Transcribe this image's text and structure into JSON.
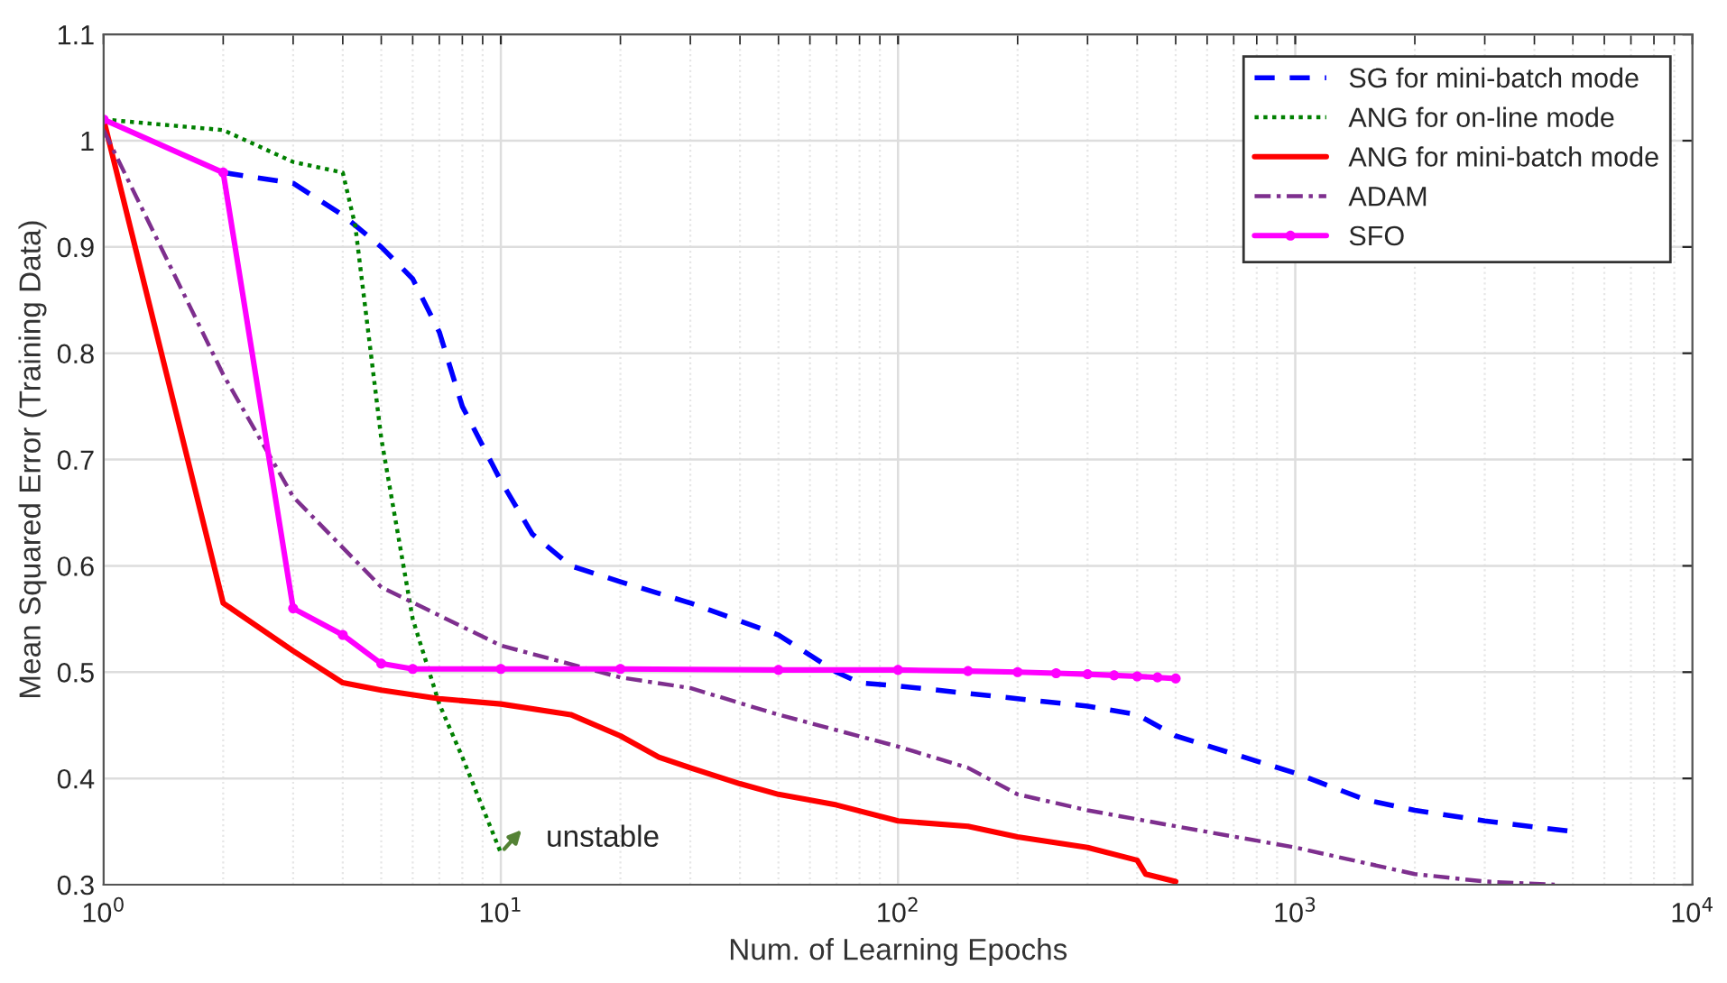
{
  "chart_data": {
    "type": "line",
    "xlabel": "Num. of Learning Epochs",
    "ylabel": "Mean Squared Error (Training Data)",
    "log": "x",
    "grid": true,
    "legend": "top right",
    "xlim": [
      1,
      10000
    ],
    "ylim": [
      0.3,
      1.1
    ],
    "xticks": [
      {
        "value": 1,
        "label": "10$^{0}$"
      },
      {
        "value": 10,
        "label": "10$^{1}$"
      },
      {
        "value": 100,
        "label": "10$^{2}$"
      },
      {
        "value": 1000,
        "label": "10$^{3}$"
      },
      {
        "value": 10000,
        "label": "10$^{4}$"
      }
    ],
    "yticks": [
      0.3,
      0.4,
      0.5,
      0.6,
      0.7,
      0.8,
      0.9,
      1,
      1.1
    ],
    "series": [
      {
        "name": "SG for mini-batch mode",
        "color": "#0000ff",
        "line_style": "dashed",
        "marker": "none",
        "x": [
          2,
          3,
          4,
          5,
          6,
          7,
          8,
          10,
          12,
          15,
          20,
          30,
          50,
          70,
          80,
          100,
          200,
          300,
          400,
          500,
          1000,
          1500,
          2000,
          3000,
          5000
        ],
        "values": [
          0.97,
          0.96,
          0.93,
          0.9,
          0.87,
          0.82,
          0.75,
          0.68,
          0.63,
          0.6,
          0.585,
          0.565,
          0.535,
          0.5,
          0.49,
          0.487,
          0.475,
          0.468,
          0.46,
          0.44,
          0.405,
          0.38,
          0.37,
          0.36,
          0.35
        ]
      },
      {
        "name": "ANG for on-line mode",
        "color": "#008000",
        "line_style": "dotted",
        "marker": "none",
        "x": [
          1,
          2,
          3,
          4,
          4.3,
          5,
          6,
          7,
          8,
          10
        ],
        "values": [
          1.02,
          1.01,
          0.98,
          0.97,
          0.92,
          0.72,
          0.55,
          0.47,
          0.42,
          0.33
        ]
      },
      {
        "name": "ANG for mini-batch mode",
        "color": "#ff0000",
        "line_style": "solid",
        "marker": "none",
        "x": [
          1,
          2,
          3,
          4,
          5,
          7,
          10,
          15,
          20,
          25,
          30,
          40,
          50,
          70,
          100,
          150,
          200,
          300,
          400,
          420,
          500
        ],
        "values": [
          1.02,
          0.565,
          0.52,
          0.49,
          0.483,
          0.475,
          0.47,
          0.46,
          0.44,
          0.42,
          0.41,
          0.395,
          0.385,
          0.375,
          0.36,
          0.355,
          0.345,
          0.335,
          0.323,
          0.31,
          0.303
        ]
      },
      {
        "name": "ADAM",
        "color": "#7e2f8e",
        "line_style": "dashdot",
        "marker": "none",
        "x": [
          1,
          2,
          3,
          5,
          10,
          20,
          30,
          50,
          100,
          150,
          200,
          300,
          500,
          1000,
          2000,
          3000,
          4500
        ],
        "values": [
          1.01,
          0.78,
          0.665,
          0.58,
          0.525,
          0.495,
          0.485,
          0.46,
          0.43,
          0.41,
          0.385,
          0.37,
          0.355,
          0.335,
          0.31,
          0.303,
          0.3
        ]
      },
      {
        "name": "SFO",
        "color": "#ff00ff",
        "line_style": "solid",
        "marker": "circle",
        "x": [
          1,
          2,
          3,
          4,
          5,
          6,
          10,
          20,
          50,
          100,
          150,
          200,
          250,
          300,
          350,
          400,
          450,
          500
        ],
        "values": [
          1.02,
          0.97,
          0.56,
          0.535,
          0.508,
          0.503,
          0.503,
          0.503,
          0.502,
          0.502,
          0.501,
          0.5,
          0.499,
          0.498,
          0.497,
          0.496,
          0.495,
          0.494
        ]
      }
    ],
    "annotations": [
      {
        "text": "unstable",
        "x": 10,
        "y": 0.33
      }
    ]
  }
}
